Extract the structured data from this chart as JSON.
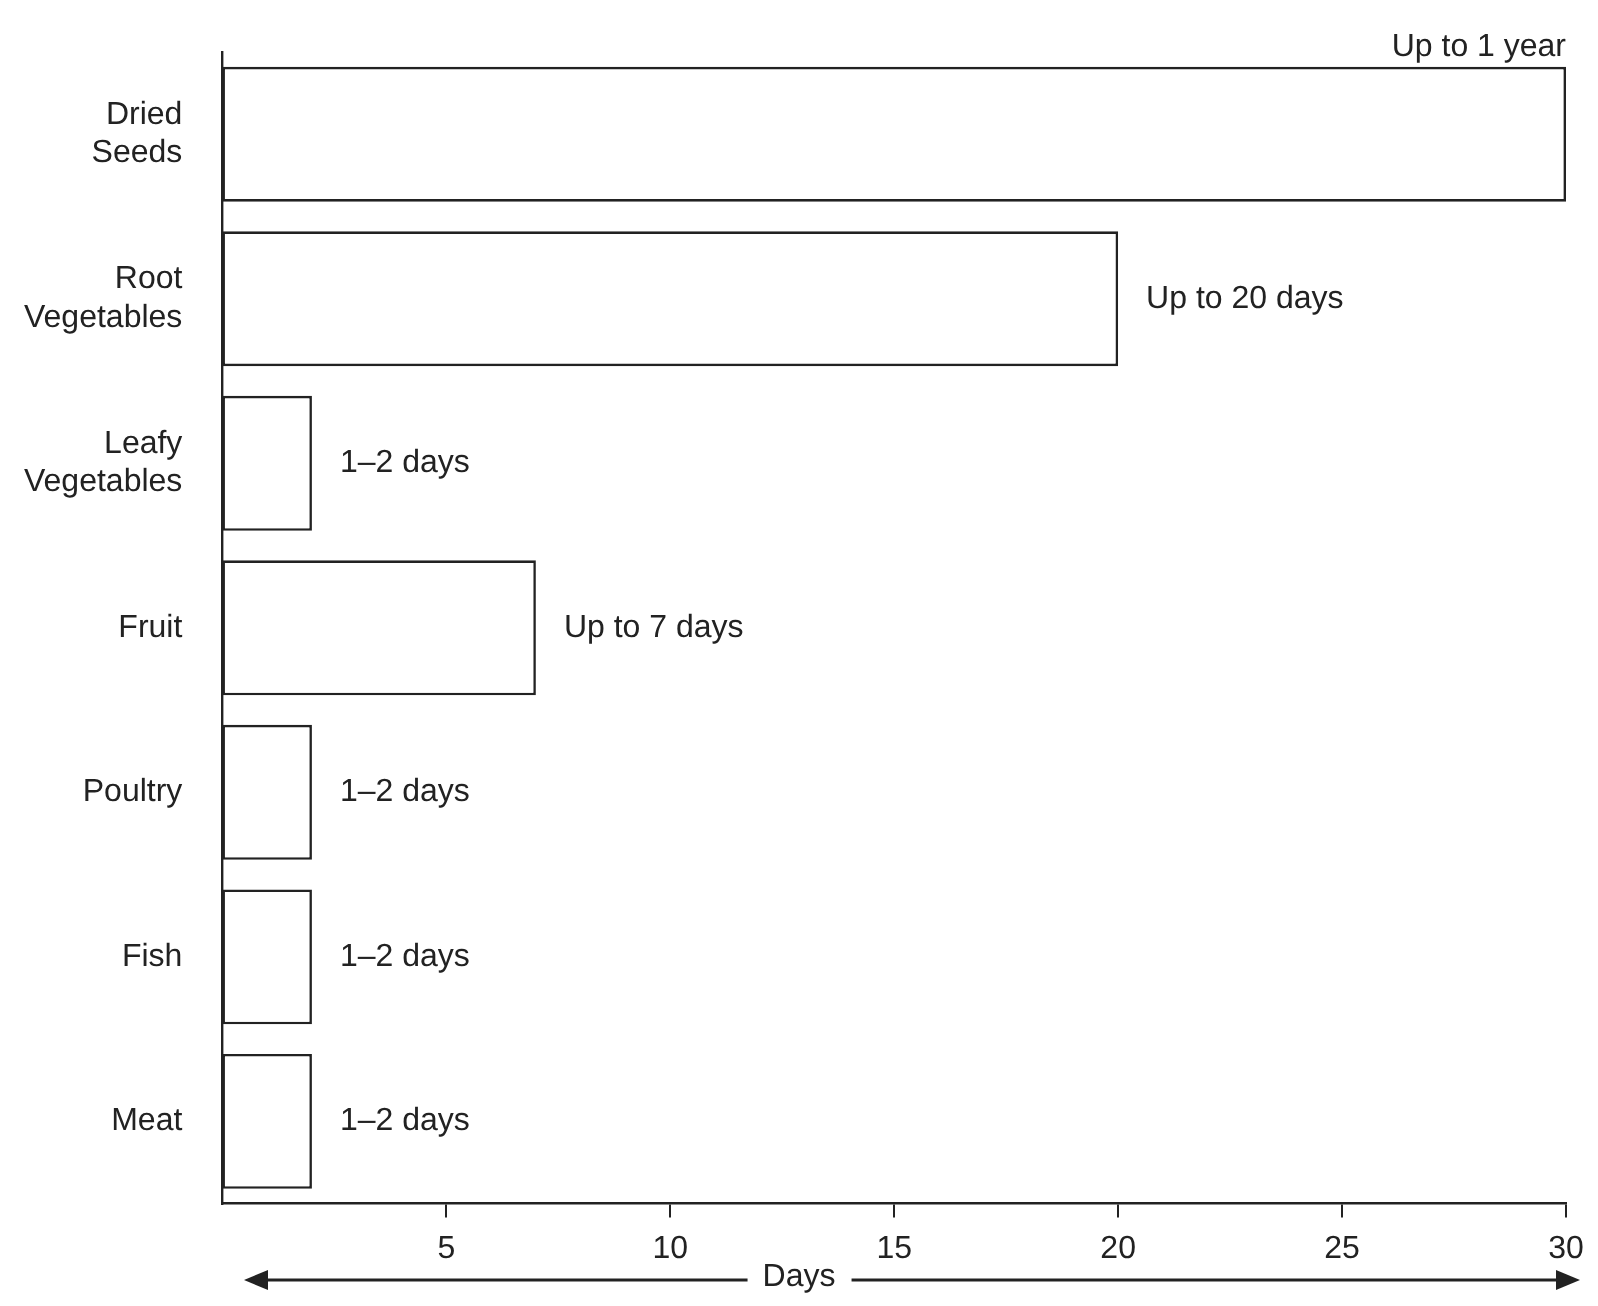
{
  "chart_data": {
    "type": "bar",
    "orientation": "horizontal",
    "categories": [
      "Dried Seeds",
      "Root Vegetables",
      "Leafy Vegetables",
      "Fruit",
      "Poultry",
      "Fish",
      "Meat"
    ],
    "values": [
      30,
      20,
      2,
      7,
      2,
      2,
      2
    ],
    "value_labels": [
      "Up to 1 year",
      "Up to 20 days",
      "1–2 days",
      "Up to 7 days",
      "1–2 days",
      "1–2 days",
      "1–2 days"
    ],
    "color": "#ffffff",
    "xlim": [
      0,
      30
    ],
    "xticks": [
      5,
      10,
      15,
      20,
      25,
      30
    ],
    "xlabel": "Days",
    "grid": false,
    "legend": false
  }
}
